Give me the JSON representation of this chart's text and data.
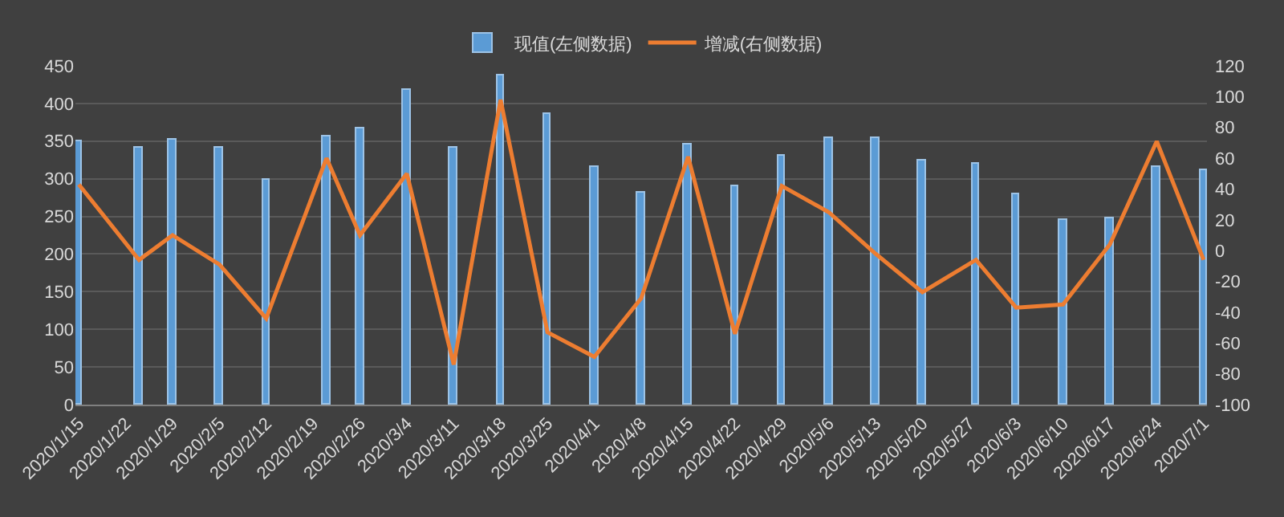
{
  "chart_data": {
    "type": "bar",
    "x": [
      "2020-01-15",
      "2020-01-24",
      "2020-01-29",
      "2020-02-05",
      "2020-02-12",
      "2020-02-21",
      "2020-02-26",
      "2020-03-04",
      "2020-03-11",
      "2020-03-18",
      "2020-03-25",
      "2020-04-01",
      "2020-04-08",
      "2020-04-15",
      "2020-04-22",
      "2020-04-29",
      "2020-05-06",
      "2020-05-13",
      "2020-05-20",
      "2020-05-28",
      "2020-06-03",
      "2020-06-10",
      "2020-06-17",
      "2020-06-24",
      "2020-07-01"
    ],
    "series": [
      {
        "name": "现值(左侧数据)",
        "color": "#5b9bd5",
        "values": [
          350,
          342,
          351,
          342,
          299,
          357,
          366,
          417,
          342,
          438,
          385,
          316,
          282,
          345,
          290,
          331,
          355,
          353,
          325,
          319,
          280,
          245,
          247,
          316,
          311
        ]
      },
      {
        "name": "增减(右侧数据)",
        "type": "line",
        "axis": "y2",
        "color": "#ed7d31",
        "values": [
          43,
          -6,
          10,
          -9,
          -44,
          60,
          10,
          50,
          -74,
          98,
          -53,
          -69,
          -31,
          61,
          -54,
          42,
          25,
          -2,
          -27,
          -6,
          -37,
          -35,
          4,
          71,
          -6
        ]
      }
    ],
    "xlim": [
      "2020-01-14T12:00",
      "2020-07-01T12:00"
    ],
    "xticks": [
      {
        "value": "2020-01-15",
        "label": "2020/1/15"
      },
      {
        "value": "2020-01-22",
        "label": "2020/1/22"
      },
      {
        "value": "2020-01-29",
        "label": "2020/1/29"
      },
      {
        "value": "2020-02-05",
        "label": "2020/2/5"
      },
      {
        "value": "2020-02-12",
        "label": "2020/2/12"
      },
      {
        "value": "2020-02-19",
        "label": "2020/2/19"
      },
      {
        "value": "2020-02-26",
        "label": "2020/2/26"
      },
      {
        "value": "2020-03-04",
        "label": "2020/3/4"
      },
      {
        "value": "2020-03-11",
        "label": "2020/3/11"
      },
      {
        "value": "2020-03-18",
        "label": "2020/3/18"
      },
      {
        "value": "2020-03-25",
        "label": "2020/3/25"
      },
      {
        "value": "2020-04-01",
        "label": "2020/4/1"
      },
      {
        "value": "2020-04-08",
        "label": "2020/4/8"
      },
      {
        "value": "2020-04-15",
        "label": "2020/4/15"
      },
      {
        "value": "2020-04-22",
        "label": "2020/4/22"
      },
      {
        "value": "2020-04-29",
        "label": "2020/4/29"
      },
      {
        "value": "2020-05-06",
        "label": "2020/5/6"
      },
      {
        "value": "2020-05-13",
        "label": "2020/5/13"
      },
      {
        "value": "2020-05-20",
        "label": "2020/5/20"
      },
      {
        "value": "2020-05-27",
        "label": "2020/5/27"
      },
      {
        "value": "2020-06-03",
        "label": "2020/6/3"
      },
      {
        "value": "2020-06-10",
        "label": "2020/6/10"
      },
      {
        "value": "2020-06-17",
        "label": "2020/6/17"
      },
      {
        "value": "2020-06-24",
        "label": "2020/6/24"
      },
      {
        "value": "2020-07-01",
        "label": "2020/7/1"
      }
    ],
    "ylim": [
      0,
      450
    ],
    "yticks": [
      0,
      50,
      100,
      150,
      200,
      250,
      300,
      350,
      400,
      450
    ],
    "y2lim": [
      -100,
      120
    ],
    "y2ticks": [
      -100,
      -80,
      -60,
      -40,
      -20,
      0,
      20,
      40,
      60,
      80,
      100,
      120
    ],
    "grid": "y",
    "legend": "top",
    "marker": "none",
    "line_style": "solid"
  }
}
